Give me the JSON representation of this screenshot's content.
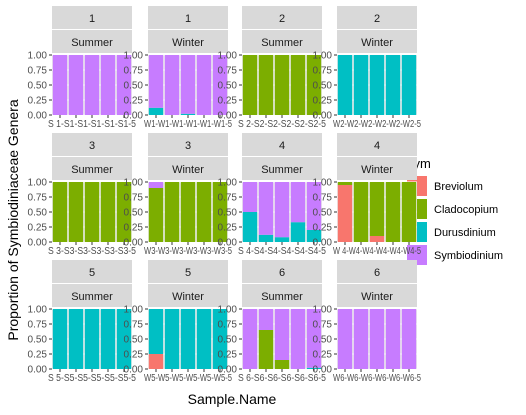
{
  "chart_data": {
    "type": "bar",
    "stacked": true,
    "xlabel": "Sample.Name",
    "ylabel": "Proportion of Symbiodiniaceae Genera",
    "ylim": [
      0,
      1
    ],
    "yticks": [
      "0.00",
      "0.25",
      "0.50",
      "0.75",
      "1.00"
    ],
    "grid": true,
    "legend": {
      "title": "sym",
      "position": "right",
      "entries": [
        {
          "name": "Breviolum",
          "color": "#F8766D"
        },
        {
          "name": "Cladocopium",
          "color": "#7CAE00"
        },
        {
          "name": "Durusdinium",
          "color": "#00BFC4"
        },
        {
          "name": "Symbiodinium",
          "color": "#C77CFF"
        }
      ]
    },
    "facets": [
      {
        "site": "1",
        "season": "Summer",
        "xtick_text": "S 1-S1-S1-S1-S1-S1-5",
        "bars": [
          [
            0,
            0,
            0,
            1
          ],
          [
            0,
            0,
            0,
            1
          ],
          [
            0,
            0,
            0,
            1
          ],
          [
            0,
            0,
            0,
            1
          ],
          [
            0,
            0,
            0,
            1
          ]
        ]
      },
      {
        "site": "1",
        "season": "Winter",
        "xtick_text": "W1-W1-W1-W1-W1-W1-5",
        "bars": [
          [
            0,
            0,
            0.12,
            0.88
          ],
          [
            0,
            0,
            0,
            1
          ],
          [
            0,
            0,
            0.02,
            0.98
          ],
          [
            0,
            0,
            0,
            1
          ],
          [
            0,
            0,
            0,
            1
          ]
        ]
      },
      {
        "site": "2",
        "season": "Summer",
        "xtick_text": "S 2-S2-S2-S2-S2-S2-5",
        "bars": [
          [
            0,
            1,
            0,
            0
          ],
          [
            0,
            1,
            0,
            0
          ],
          [
            0,
            1,
            0,
            0
          ],
          [
            0,
            1,
            0,
            0
          ],
          [
            0,
            1,
            0,
            0
          ]
        ]
      },
      {
        "site": "2",
        "season": "Winter",
        "xtick_text": "W2-W2-W2-W2-W2-W2-5",
        "bars": [
          [
            0,
            0,
            1,
            0
          ],
          [
            0,
            0,
            1,
            0
          ],
          [
            0,
            0,
            1,
            0
          ],
          [
            0,
            0,
            1,
            0
          ],
          [
            0,
            0,
            1,
            0
          ]
        ]
      },
      {
        "site": "3",
        "season": "Summer",
        "xtick_text": "S 3-S3-S3-S3-S3-S3-5",
        "bars": [
          [
            0,
            1,
            0,
            0
          ],
          [
            0,
            1,
            0,
            0
          ],
          [
            0,
            1,
            0,
            0
          ],
          [
            0,
            1,
            0,
            0
          ],
          [
            0,
            1,
            0,
            0
          ]
        ]
      },
      {
        "site": "3",
        "season": "Winter",
        "xtick_text": "W3-W3-W3-W3-W3-W3-5",
        "bars": [
          [
            0,
            0.9,
            0,
            0.1
          ],
          [
            0,
            1,
            0,
            0
          ],
          [
            0,
            1,
            0,
            0
          ],
          [
            0,
            1,
            0,
            0
          ],
          [
            0,
            1,
            0,
            0
          ]
        ]
      },
      {
        "site": "4",
        "season": "Summer",
        "xtick_text": "S 4-S4-S4-S4-S4-S4-5",
        "bars": [
          [
            0,
            0,
            0.5,
            0.5
          ],
          [
            0,
            0,
            0.12,
            0.88
          ],
          [
            0,
            0,
            0.08,
            0.92
          ],
          [
            0,
            0,
            0.33,
            0.67
          ],
          [
            0,
            0,
            0.2,
            0.8
          ]
        ]
      },
      {
        "site": "4",
        "season": "Winter",
        "xtick_text": "W 4-W4-W4-W4-W4-W4-5",
        "bars": [
          [
            0.95,
            0.05,
            0,
            0
          ],
          [
            0,
            1,
            0,
            0
          ],
          [
            0.1,
            0.9,
            0,
            0
          ],
          [
            0,
            1,
            0,
            0
          ],
          [
            0,
            1,
            0,
            0
          ]
        ]
      },
      {
        "site": "5",
        "season": "Summer",
        "xtick_text": "S 5-S5-S5-S5-S5-S5-5",
        "bars": [
          [
            0,
            0,
            1,
            0
          ],
          [
            0,
            0,
            1,
            0
          ],
          [
            0,
            0,
            1,
            0
          ],
          [
            0,
            0,
            1,
            0
          ],
          [
            0,
            0,
            1,
            0
          ]
        ]
      },
      {
        "site": "5",
        "season": "Winter",
        "xtick_text": "W5-W5-W5-W5-W5-W5-5",
        "bars": [
          [
            0.25,
            0,
            0.75,
            0
          ],
          [
            0,
            0,
            1,
            0
          ],
          [
            0,
            0,
            1,
            0
          ],
          [
            0,
            0,
            1,
            0
          ],
          [
            0,
            0,
            1,
            0
          ]
        ]
      },
      {
        "site": "6",
        "season": "Summer",
        "xtick_text": "S 6-S6-S6-S6-S6-S6-5",
        "bars": [
          [
            0,
            0,
            0,
            1
          ],
          [
            0,
            0.65,
            0,
            0.35
          ],
          [
            0,
            0.15,
            0,
            0.85
          ],
          [
            0,
            0,
            0,
            1
          ],
          [
            0,
            0,
            0.02,
            0.98
          ]
        ]
      },
      {
        "site": "6",
        "season": "Winter",
        "xtick_text": "W6-W6-W6-W6-W6-W6-5",
        "bars": [
          [
            0,
            0,
            0,
            1
          ],
          [
            0,
            0,
            0,
            1
          ],
          [
            0,
            0,
            0,
            1
          ],
          [
            0,
            0,
            0,
            1
          ],
          [
            0,
            0,
            0,
            1
          ]
        ]
      }
    ]
  }
}
